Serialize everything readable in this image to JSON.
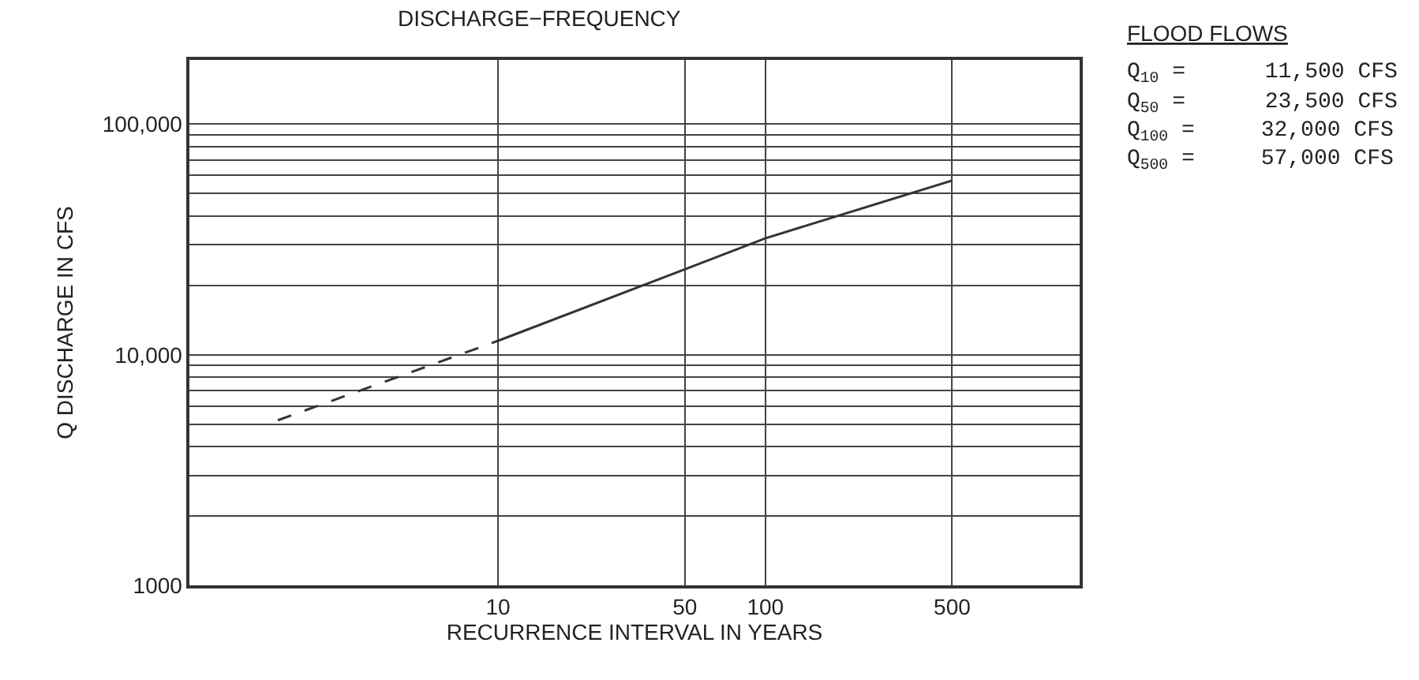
{
  "chart_data": {
    "type": "line",
    "title": "DISCHARGE−FREQUENCY",
    "xlabel": "RECURRENCE INTERVAL IN YEARS",
    "ylabel": "Q DISCHARGE IN CFS",
    "series": [
      {
        "x": [
          1.5,
          10
        ],
        "values": [
          5200,
          11500
        ],
        "color": "#333333",
        "line_style": "dashed"
      },
      {
        "x": [
          10,
          50,
          100,
          500
        ],
        "values": [
          11500,
          23500,
          32000,
          57000
        ],
        "color": "#333333",
        "line_style": "solid"
      }
    ],
    "log": "xy",
    "xlim": [
      0.7,
      1500
    ],
    "ylim": [
      1000,
      190000
    ],
    "xticks": [
      10,
      50,
      100,
      500
    ],
    "yticks": [
      {
        "value": 1000,
        "label": "1000"
      },
      {
        "value": 2000,
        "label": null
      },
      {
        "value": 3000,
        "label": null
      },
      {
        "value": 4000,
        "label": null
      },
      {
        "value": 5000,
        "label": null
      },
      {
        "value": 6000,
        "label": null
      },
      {
        "value": 7000,
        "label": null
      },
      {
        "value": 8000,
        "label": null
      },
      {
        "value": 9000,
        "label": null
      },
      {
        "value": 10000,
        "label": "10,000"
      },
      {
        "value": 20000,
        "label": null
      },
      {
        "value": 30000,
        "label": null
      },
      {
        "value": 40000,
        "label": null
      },
      {
        "value": 50000,
        "label": null
      },
      {
        "value": 60000,
        "label": null
      },
      {
        "value": 70000,
        "label": null
      },
      {
        "value": 80000,
        "label": null
      },
      {
        "value": 90000,
        "label": null
      },
      {
        "value": 100000,
        "label": "100,000"
      }
    ],
    "grid": true,
    "legend": false,
    "marker": "none",
    "annotations": [
      "FLOOD FLOWS",
      "Q$_{10}$ =      11,500 CFS",
      "Q$_{50}$ =      23,500 CFS",
      "Q$_{100}$ =     32,000 CFS",
      "Q$_{500}$ =     57,000 CFS"
    ]
  }
}
